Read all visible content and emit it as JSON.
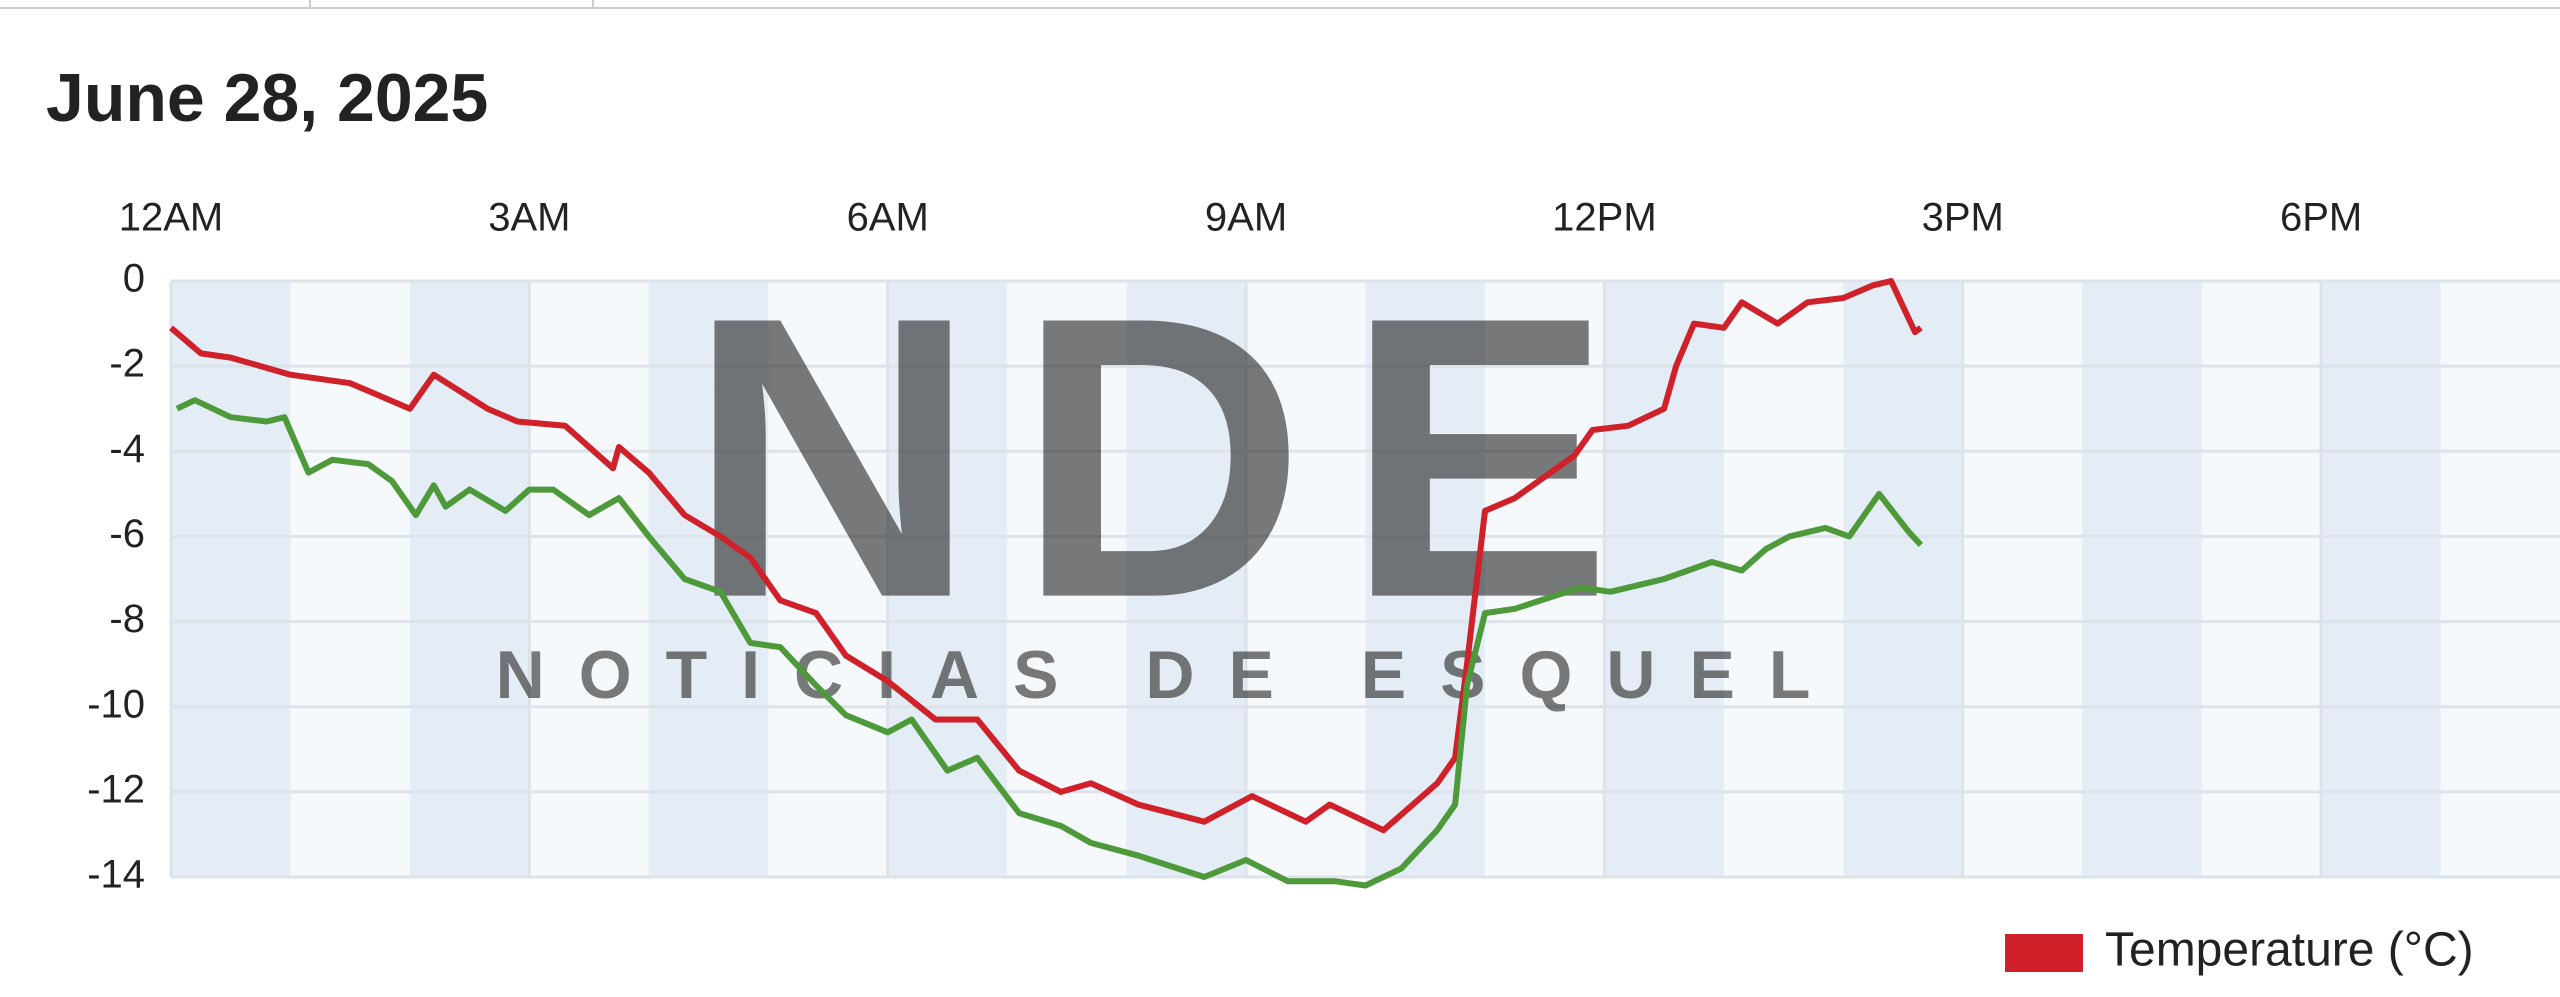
{
  "chart_data": {
    "type": "line",
    "title": "June 28, 2025",
    "xlim": [
      0,
      20
    ],
    "ylim": [
      -14,
      0
    ],
    "xticks": [
      {
        "value": 0,
        "label": "12AM"
      },
      {
        "value": 3,
        "label": "3AM"
      },
      {
        "value": 6,
        "label": "6AM"
      },
      {
        "value": 9,
        "label": "9AM"
      },
      {
        "value": 12,
        "label": "12PM"
      },
      {
        "value": 15,
        "label": "3PM"
      },
      {
        "value": 18,
        "label": "6PM"
      }
    ],
    "yticks": [
      0,
      -2,
      -4,
      -6,
      -8,
      -10,
      -12,
      -14
    ],
    "grid": true,
    "series": [
      {
        "name": "Temperature (°C)",
        "color": "#d0202a",
        "x": [
          0,
          0.25,
          0.5,
          1,
          1.5,
          2,
          2.2,
          2.65,
          2.9,
          3.3,
          3.7,
          3.75,
          4.0,
          4.3,
          4.6,
          4.85,
          5.1,
          5.4,
          5.65,
          6.0,
          6.4,
          6.75,
          7.1,
          7.45,
          7.7,
          8.1,
          8.65,
          9.05,
          9.5,
          9.7,
          10.15,
          10.6,
          10.75,
          10.85,
          11.0,
          11.25,
          11.75,
          11.9,
          12.2,
          12.5,
          12.6,
          12.75,
          13.0,
          13.15,
          13.45,
          13.7,
          14.0,
          14.25,
          14.4,
          14.6,
          14.65
        ],
        "values": [
          -1.1,
          -1.7,
          -1.8,
          -2.2,
          -2.4,
          -3.0,
          -2.2,
          -3.0,
          -3.3,
          -3.4,
          -4.4,
          -3.9,
          -4.5,
          -5.5,
          -6.0,
          -6.5,
          -7.5,
          -7.8,
          -8.8,
          -9.4,
          -10.3,
          -10.3,
          -11.5,
          -12.0,
          -11.8,
          -12.3,
          -12.7,
          -12.1,
          -12.7,
          -12.3,
          -12.9,
          -11.8,
          -11.2,
          -9.0,
          -5.4,
          -5.1,
          -4.1,
          -3.5,
          -3.4,
          -3.0,
          -2.0,
          -1.0,
          -1.1,
          -0.5,
          -1.0,
          -0.5,
          -0.4,
          -0.1,
          0.0,
          -1.2,
          -1.1
        ]
      },
      {
        "color": "#4e9a3a",
        "x": [
          0.05,
          0.2,
          0.5,
          0.8,
          0.95,
          1.15,
          1.35,
          1.65,
          1.85,
          2.05,
          2.2,
          2.3,
          2.5,
          2.8,
          3.0,
          3.2,
          3.5,
          3.75,
          4.0,
          4.3,
          4.6,
          4.85,
          5.1,
          5.4,
          5.65,
          6.0,
          6.2,
          6.5,
          6.75,
          7.1,
          7.45,
          7.7,
          8.1,
          8.65,
          9.0,
          9.35,
          9.75,
          10.0,
          10.3,
          10.6,
          10.75,
          10.85,
          11.0,
          11.25,
          11.8,
          12.05,
          12.5,
          12.9,
          13.15,
          13.35,
          13.55,
          13.85,
          14.05,
          14.3,
          14.55,
          14.65
        ],
        "values": [
          -3.0,
          -2.8,
          -3.2,
          -3.3,
          -3.2,
          -4.5,
          -4.2,
          -4.3,
          -4.7,
          -5.5,
          -4.8,
          -5.3,
          -4.9,
          -5.4,
          -4.9,
          -4.9,
          -5.5,
          -5.1,
          -6.0,
          -7.0,
          -7.3,
          -8.5,
          -8.6,
          -9.5,
          -10.2,
          -10.6,
          -10.3,
          -11.5,
          -11.2,
          -12.5,
          -12.8,
          -13.2,
          -13.5,
          -14.0,
          -13.6,
          -14.1,
          -14.1,
          -14.2,
          -13.8,
          -12.9,
          -12.3,
          -9.5,
          -7.8,
          -7.7,
          -7.2,
          -7.3,
          -7.0,
          -6.6,
          -6.8,
          -6.3,
          -6.0,
          -5.8,
          -6.0,
          -5.0,
          -5.9,
          -6.2
        ]
      }
    ],
    "legend": "bottom-right"
  },
  "watermark": {
    "logo": "NDE",
    "text": "NOTICIAS DE ESQUEL"
  }
}
